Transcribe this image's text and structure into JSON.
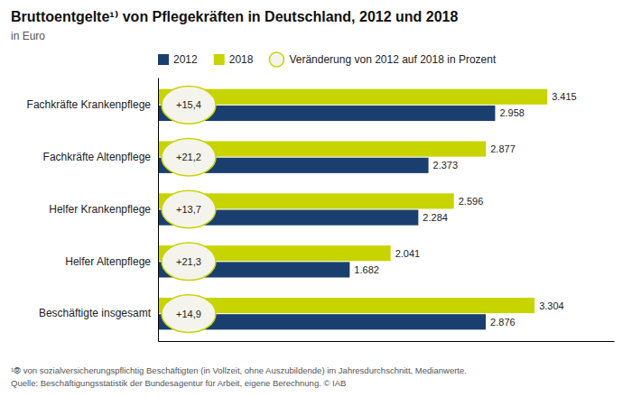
{
  "chart_data": {
    "type": "bar",
    "orientation": "horizontal",
    "title": "Bruttoentgelte¹⁾ von Pflegekräften in Deutschland, 2012 und 2018",
    "subtitle": "in Euro",
    "categories": [
      "Fachkräfte Krankenpflege",
      "Fachkräfte Altenpflege",
      "Helfer Krankenpflege",
      "Helfer Altenpflege",
      "Beschäftigte insgesamt"
    ],
    "series": [
      {
        "name": "2012",
        "color": "#1a3f6f",
        "values": [
          2958,
          2373,
          2284,
          1682,
          2876
        ],
        "value_labels": [
          "2.958",
          "2.373",
          "2.284",
          "1.682",
          "2.876"
        ]
      },
      {
        "name": "2018",
        "color": "#c8d400",
        "values": [
          3415,
          2877,
          2596,
          2041,
          3304
        ],
        "value_labels": [
          "3.415",
          "2.877",
          "2.596",
          "2.041",
          "3.304"
        ]
      }
    ],
    "changes": {
      "name": "Veränderung von 2012 auf 2018 in Prozent",
      "color": "#c8d400",
      "values": [
        15.4,
        21.2,
        13.7,
        21.3,
        14.9
      ],
      "value_labels": [
        "+15,4",
        "+21,2",
        "+13,7",
        "+21,3",
        "+14,9"
      ]
    },
    "xlim": [
      0,
      4000
    ],
    "tick_labels": "y",
    "data_labels": true,
    "legend": "top",
    "annotations": [
      "¹⦾ von sozialversicherungspflichtig Beschäftigten (in Vollzeit, ohne Auszubildende) im Jahresdurchschnitt, Medianwerte.",
      "Quelle: Beschäftigungsstatistik der Bundesagentur für Arbeit, eigene Berechnung. © IAB"
    ]
  }
}
